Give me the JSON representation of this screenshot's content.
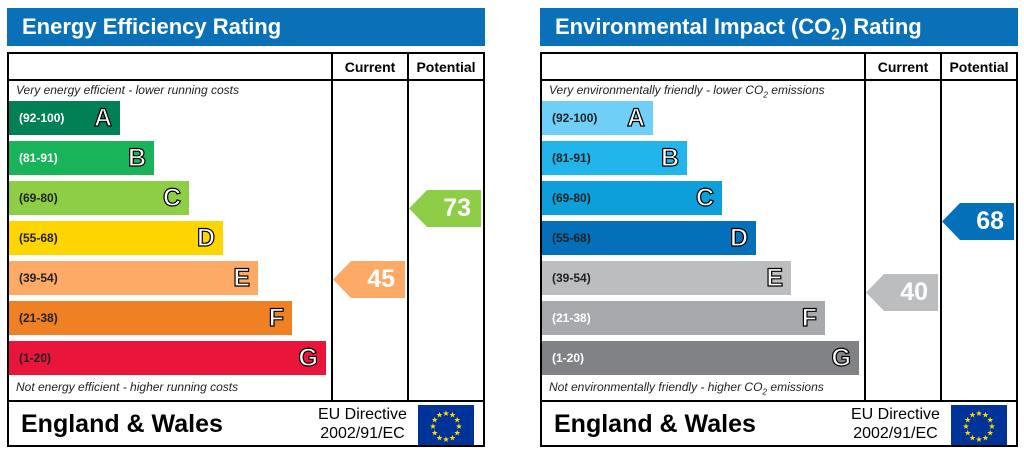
{
  "panels": [
    {
      "title": "Energy Efficiency Rating",
      "headers": {
        "current": "Current",
        "potential": "Potential"
      },
      "top_note": "Very energy efficient - lower running costs",
      "bottom_note": "Not energy efficient - higher running costs",
      "bands": [
        {
          "range": "(92-100)",
          "letter": "A",
          "color": "#008054",
          "text_color": "#ffffff"
        },
        {
          "range": "(81-91)",
          "letter": "B",
          "color": "#19b459",
          "text_color": "#ffffff"
        },
        {
          "range": "(69-80)",
          "letter": "C",
          "color": "#8dce46",
          "text_color": "#222222"
        },
        {
          "range": "(55-68)",
          "letter": "D",
          "color": "#ffd500",
          "text_color": "#222222"
        },
        {
          "range": "(39-54)",
          "letter": "E",
          "color": "#fcaa65",
          "text_color": "#222222"
        },
        {
          "range": "(21-38)",
          "letter": "F",
          "color": "#ef8023",
          "text_color": "#222222"
        },
        {
          "range": "(1-20)",
          "letter": "G",
          "color": "#e9153b",
          "text_color": "#222222"
        }
      ],
      "current": {
        "value": 45,
        "label": "45",
        "color": "#fcaa65"
      },
      "potential": {
        "value": 73,
        "label": "73",
        "color": "#8dce46"
      },
      "footer": {
        "region": "England & Wales",
        "directive_line1": "EU Directive",
        "directive_line2": "2002/91/EC"
      }
    },
    {
      "title": "Environmental Impact (CO2) Rating",
      "headers": {
        "current": "Current",
        "potential": "Potential"
      },
      "top_note": "Very environmentally friendly - lower CO2 emissions",
      "bottom_note": "Not environmentally friendly - higher CO2 emissions",
      "bands": [
        {
          "range": "(92-100)",
          "letter": "A",
          "color": "#6fcff6",
          "text_color": "#222222"
        },
        {
          "range": "(81-91)",
          "letter": "B",
          "color": "#22b5ec",
          "text_color": "#222222"
        },
        {
          "range": "(69-80)",
          "letter": "C",
          "color": "#0c9fd9",
          "text_color": "#222222"
        },
        {
          "range": "(55-68)",
          "letter": "D",
          "color": "#0370b9",
          "text_color": "#222222"
        },
        {
          "range": "(39-54)",
          "letter": "E",
          "color": "#bbbdbf",
          "text_color": "#222222"
        },
        {
          "range": "(21-38)",
          "letter": "F",
          "color": "#a7a9ac",
          "text_color": "#ffffff"
        },
        {
          "range": "(1-20)",
          "letter": "G",
          "color": "#808285",
          "text_color": "#ffffff"
        }
      ],
      "current": {
        "value": 40,
        "label": "40",
        "color": "#bbbdbf"
      },
      "potential": {
        "value": 68,
        "label": "68",
        "color": "#0370b9"
      },
      "footer": {
        "region": "England & Wales",
        "directive_line1": "EU Directive",
        "directive_line2": "2002/91/EC"
      }
    }
  ],
  "chart_data": [
    {
      "type": "bar",
      "title": "Energy Efficiency Rating",
      "categories": [
        "A",
        "B",
        "C",
        "D",
        "E",
        "F",
        "G"
      ],
      "ranges": [
        "92-100",
        "81-91",
        "69-80",
        "55-68",
        "39-54",
        "21-38",
        "1-20"
      ],
      "current": 45,
      "potential": 73
    },
    {
      "type": "bar",
      "title": "Environmental Impact (CO2) Rating",
      "categories": [
        "A",
        "B",
        "C",
        "D",
        "E",
        "F",
        "G"
      ],
      "ranges": [
        "92-100",
        "81-91",
        "69-80",
        "55-68",
        "39-54",
        "21-38",
        "1-20"
      ],
      "current": 40,
      "potential": 68
    }
  ],
  "eu_flag": {
    "background": "#003399",
    "stars": "#ffdd00"
  }
}
